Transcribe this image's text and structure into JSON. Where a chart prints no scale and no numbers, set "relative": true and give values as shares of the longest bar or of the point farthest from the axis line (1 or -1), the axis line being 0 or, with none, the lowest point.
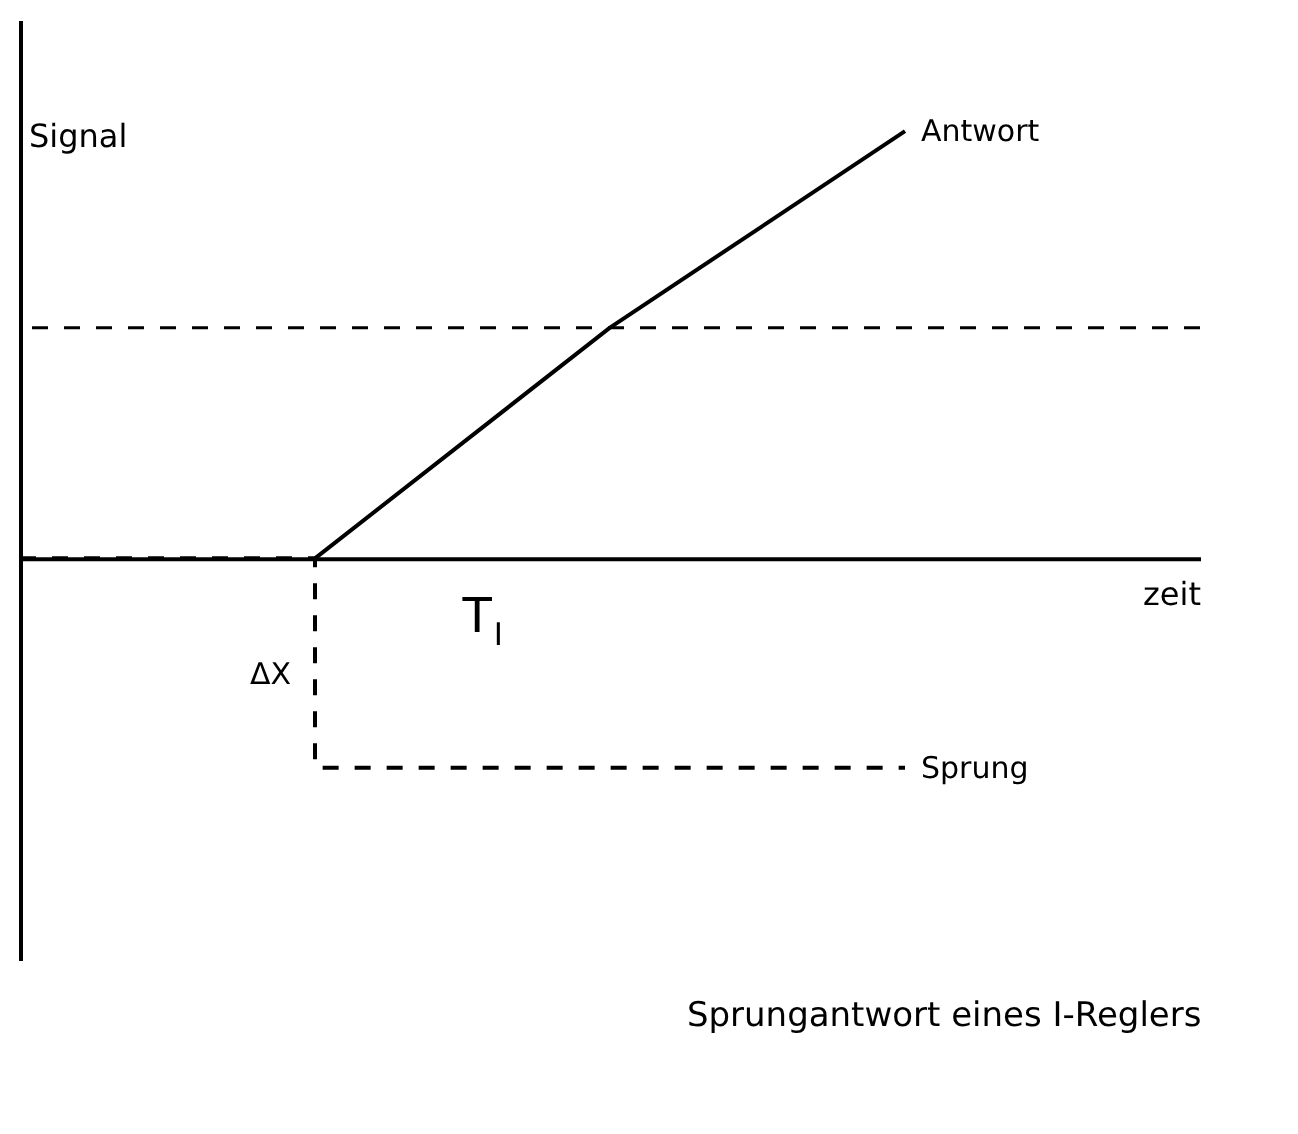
{
  "chart_data": {
    "type": "line",
    "relative": true,
    "title": "Sprungantwort eines I-Reglers",
    "xlabel": "zeit",
    "ylabel": "Signal",
    "categories": [
      null,
      null,
      null,
      null
    ],
    "series": [
      {
        "name": "Antwort",
        "color": "#000000",
        "values": [
          null,
          0,
          0.54,
          1
        ]
      },
      {
        "name": "Sprung",
        "type": "step",
        "color": "#000000",
        "line_style": "dashed",
        "values": [
          0,
          -0.49,
          -0.49,
          -0.49
        ]
      }
    ],
    "ref_lines": [
      {
        "axis": "y",
        "value": 0.54,
        "line_style": "dashed",
        "color": "#000000"
      }
    ],
    "annotations": [
      "T$_{I}$",
      "ΔX"
    ],
    "grid": false
  }
}
